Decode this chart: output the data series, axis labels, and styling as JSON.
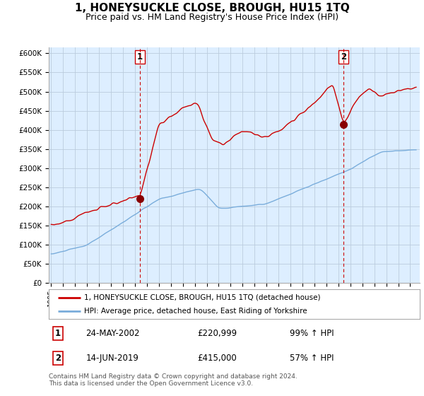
{
  "title": "1, HONEYSUCKLE CLOSE, BROUGH, HU15 1TQ",
  "subtitle": "Price paid vs. HM Land Registry's House Price Index (HPI)",
  "title_fontsize": 11,
  "subtitle_fontsize": 9,
  "ylabel_ticks": [
    "£0",
    "£50K",
    "£100K",
    "£150K",
    "£200K",
    "£250K",
    "£300K",
    "£350K",
    "£400K",
    "£450K",
    "£500K",
    "£550K",
    "£600K"
  ],
  "ytick_vals": [
    0,
    50000,
    100000,
    150000,
    200000,
    250000,
    300000,
    350000,
    400000,
    450000,
    500000,
    550000,
    600000
  ],
  "ylim": [
    0,
    615000
  ],
  "xlim_start": 1994.8,
  "xlim_end": 2025.8,
  "transaction1_x": 2002.39,
  "transaction1_y": 220999,
  "transaction2_x": 2019.45,
  "transaction2_y": 415000,
  "red_color": "#cc0000",
  "blue_color": "#7aaddb",
  "chart_bg": "#ddeeff",
  "legend_label_red": "1, HONEYSUCKLE CLOSE, BROUGH, HU15 1TQ (detached house)",
  "legend_label_blue": "HPI: Average price, detached house, East Riding of Yorkshire",
  "annotation1_date": "24-MAY-2002",
  "annotation1_price": "£220,999",
  "annotation1_hpi": "99% ↑ HPI",
  "annotation2_date": "14-JUN-2019",
  "annotation2_price": "£415,000",
  "annotation2_hpi": "57% ↑ HPI",
  "footnote": "Contains HM Land Registry data © Crown copyright and database right 2024.\nThis data is licensed under the Open Government Licence v3.0.",
  "background_color": "#ffffff",
  "grid_color": "#bbccdd"
}
